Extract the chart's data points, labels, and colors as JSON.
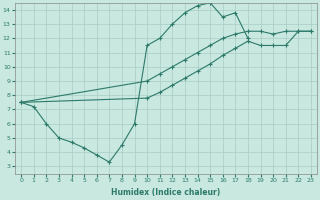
{
  "xlabel": "Humidex (Indice chaleur)",
  "xlim": [
    -0.5,
    23.5
  ],
  "ylim": [
    2.5,
    14.5
  ],
  "xticks": [
    0,
    1,
    2,
    3,
    4,
    5,
    6,
    7,
    8,
    9,
    10,
    11,
    12,
    13,
    14,
    15,
    16,
    17,
    18,
    19,
    20,
    21,
    22,
    23
  ],
  "yticks": [
    3,
    4,
    5,
    6,
    7,
    8,
    9,
    10,
    11,
    12,
    13,
    14
  ],
  "line_color": "#2d7a6a",
  "bg_color": "#c8e8e0",
  "grid_color": "#a8ccC4",
  "lines": [
    {
      "x": [
        0,
        1,
        2,
        3,
        4,
        5,
        6,
        7,
        8,
        9,
        10,
        11,
        12,
        13,
        14,
        15,
        16,
        17,
        18
      ],
      "y": [
        7.5,
        7.2,
        6.0,
        5.0,
        4.7,
        4.3,
        3.8,
        3.3,
        4.5,
        6.0,
        11.5,
        12.0,
        13.0,
        13.8,
        14.3,
        14.5,
        13.5,
        13.8,
        12.0
      ]
    },
    {
      "x": [
        0,
        10,
        11,
        12,
        13,
        14,
        15,
        16,
        17,
        18,
        19,
        20,
        21,
        22,
        23
      ],
      "y": [
        7.5,
        9.0,
        9.5,
        10.0,
        10.5,
        11.0,
        11.5,
        12.0,
        12.3,
        12.5,
        12.5,
        12.3,
        12.5,
        12.5,
        12.5
      ]
    },
    {
      "x": [
        0,
        10,
        11,
        12,
        13,
        14,
        15,
        16,
        17,
        18,
        19,
        20,
        21,
        22,
        23
      ],
      "y": [
        7.5,
        7.8,
        8.2,
        8.7,
        9.2,
        9.7,
        10.2,
        10.8,
        11.3,
        11.8,
        11.5,
        11.5,
        11.5,
        12.5,
        12.5
      ]
    }
  ]
}
